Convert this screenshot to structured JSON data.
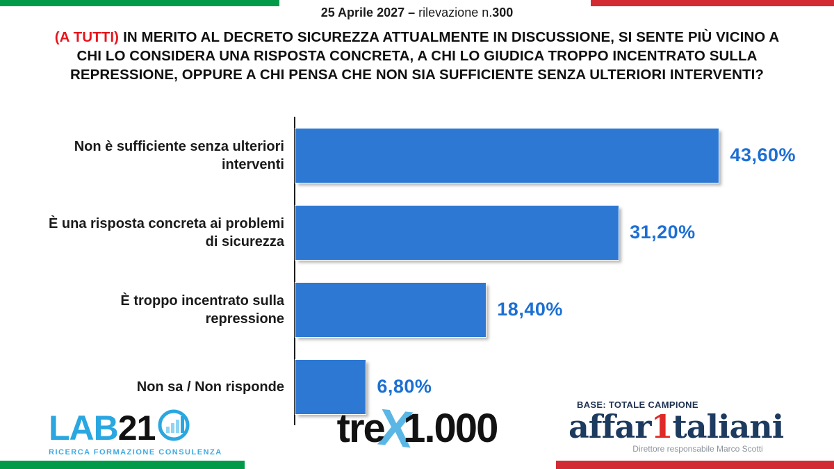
{
  "meta": {
    "date": "25 Aprile 2027",
    "separator": "–",
    "wave_label": "rilevazione n.",
    "wave_number": "300"
  },
  "question": {
    "audience_tag": "(A TUTTI)",
    "text": "IN MERITO AL DECRETO SICUREZZA ATTUALMENTE IN DISCUSSIONE, SI SENTE PIÙ VICINO A CHI LO CONSIDERA UNA RISPOSTA CONCRETA, A CHI LO GIUDICA TROPPO INCENTRATO SULLA REPRESSIONE, OPPURE A CHI PENSA CHE NON SIA SUFFICIENTE SENZA ULTERIORI INTERVENTI?"
  },
  "chart_data": {
    "type": "bar",
    "orientation": "horizontal",
    "title": "",
    "categories": [
      "Non è sufficiente senza ulteriori interventi",
      "È una risposta concreta ai problemi di sicurezza",
      "È troppo incentrato sulla repressione",
      "Non sa / Non risponde"
    ],
    "values": [
      43.6,
      31.2,
      18.4,
      6.8
    ],
    "value_labels": [
      "43,60%",
      "31,20%",
      "18,40%",
      "6,80%"
    ],
    "xlim": [
      0,
      48.3
    ],
    "grid": false,
    "legend": false,
    "bar_color": "#2d78d2",
    "value_label_color": "#1c6fd4"
  },
  "branding": {
    "lab21": {
      "name_part1": "LAB",
      "name_part2": "21",
      "tagline": "RICERCA FORMAZIONE CONSULENZA"
    },
    "trex1000": {
      "part1": "tre",
      "part2": "X",
      "part3": "1.000"
    },
    "base_label": "BASE: TOTALE CAMPIONE",
    "affaritaliani": {
      "part1": "affar",
      "part2": "1",
      "part3": "taliani",
      "subtitle": "Direttore responsabile Marco Scotti"
    }
  },
  "colors": {
    "flag_green": "#009a49",
    "flag_red": "#d32b33",
    "title_red": "#e8151c",
    "bar_blue": "#2d78d2",
    "value_blue": "#1c6fd4"
  }
}
